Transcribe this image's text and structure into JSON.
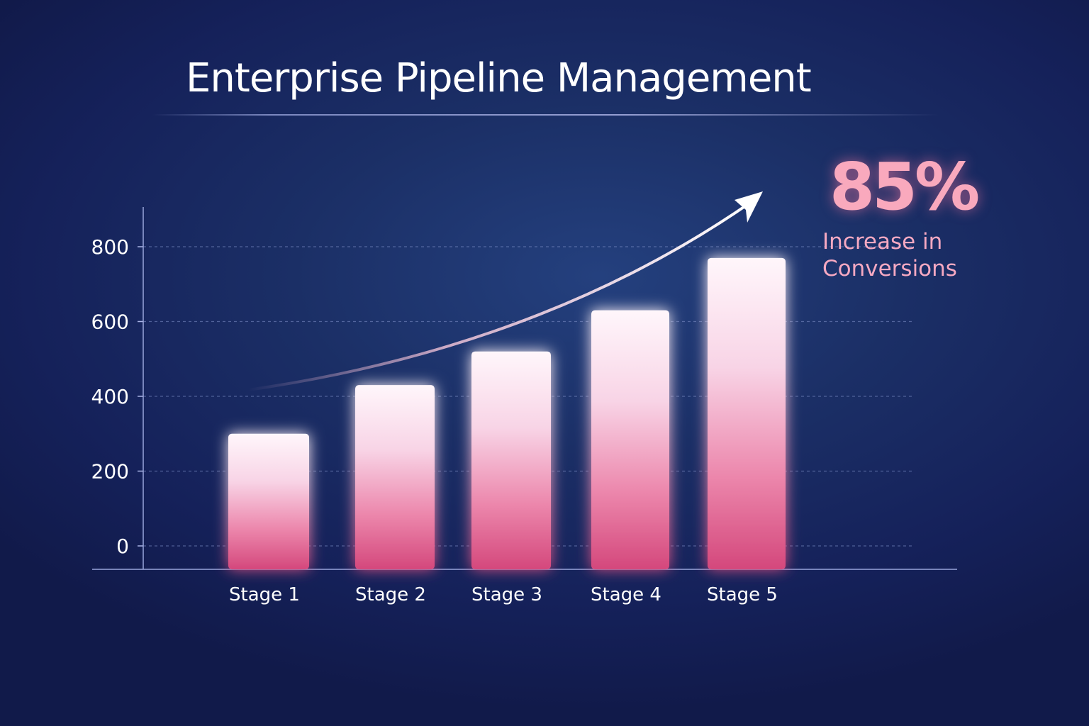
{
  "chart_data": {
    "type": "bar",
    "title": "Enterprise Pipeline Management",
    "categories": [
      "Stage 1",
      "Stage 2",
      "Stage 3",
      "Stage 4",
      "Stage 5"
    ],
    "values": [
      300,
      430,
      520,
      630,
      770
    ],
    "ylim": [
      0,
      900
    ],
    "yticks": [
      0,
      200,
      400,
      600,
      800
    ],
    "xlabel": "",
    "ylabel": "",
    "grid": true,
    "annotation": {
      "value": "85%",
      "label": "Increase in Conversions"
    }
  },
  "colors": {
    "background": "#1b2f66",
    "bar_top": "#fff6fb",
    "bar_bottom": "#d85786",
    "accent": "#f9a9bd",
    "grid": "#7f8fc9"
  }
}
